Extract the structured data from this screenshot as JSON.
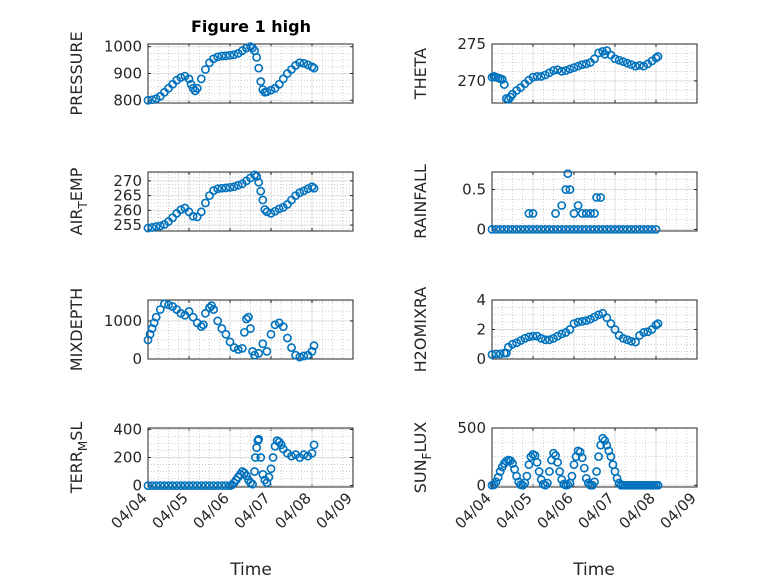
{
  "figure": {
    "title": "Figure 1 high",
    "marker_color": "#0072BD",
    "x_tick_labels": [
      "04/04",
      "04/05",
      "04/06",
      "04/07",
      "04/08",
      "04/09"
    ],
    "x_label": "Time"
  },
  "chart_data": [
    {
      "type": "scatter",
      "title": "Figure 1 high",
      "ylabel": "PRESSURE",
      "xlim": [
        0,
        5
      ],
      "ylim": [
        790,
        1010
      ],
      "yticks": [
        800,
        900,
        1000
      ],
      "xticks": [
        "04/04",
        "04/05",
        "04/06",
        "04/07",
        "04/08",
        "04/09"
      ],
      "grid": true,
      "series": [
        {
          "x": [
            0,
            0.1,
            0.2,
            0.3,
            0.4,
            0.5,
            0.6,
            0.7,
            0.8,
            0.9,
            1.0,
            1.05,
            1.1,
            1.15,
            1.2,
            1.3,
            1.4,
            1.5,
            1.6,
            1.7,
            1.8,
            1.9,
            2.0,
            2.1,
            2.2,
            2.3,
            2.4,
            2.5,
            2.55,
            2.6,
            2.65,
            2.7,
            2.75,
            2.8,
            2.85,
            2.9,
            3.0,
            3.1,
            3.2,
            3.3,
            3.4,
            3.5,
            3.6,
            3.7,
            3.8,
            3.9,
            4.0,
            4.05
          ],
          "y": [
            800,
            802,
            806,
            815,
            830,
            845,
            860,
            875,
            885,
            890,
            880,
            860,
            845,
            835,
            845,
            880,
            915,
            940,
            955,
            962,
            965,
            966,
            968,
            970,
            975,
            985,
            995,
            1000,
            995,
            985,
            960,
            920,
            870,
            840,
            830,
            832,
            838,
            845,
            860,
            880,
            900,
            915,
            930,
            940,
            938,
            932,
            925,
            920
          ]
        }
      ]
    },
    {
      "type": "scatter",
      "ylabel": "THETA",
      "xlim": [
        0,
        5
      ],
      "ylim": [
        267,
        275
      ],
      "yticks": [
        270,
        275
      ],
      "xticks": [
        "04/04",
        "04/05",
        "04/06",
        "04/07",
        "04/08",
        "04/09"
      ],
      "grid": true,
      "series": [
        {
          "x": [
            0,
            0.05,
            0.1,
            0.15,
            0.2,
            0.25,
            0.3,
            0.35,
            0.4,
            0.45,
            0.5,
            0.6,
            0.7,
            0.8,
            0.9,
            1.0,
            1.1,
            1.2,
            1.3,
            1.4,
            1.5,
            1.6,
            1.7,
            1.8,
            1.9,
            2.0,
            2.1,
            2.2,
            2.3,
            2.4,
            2.5,
            2.6,
            2.7,
            2.75,
            2.8,
            2.9,
            3.0,
            3.1,
            3.2,
            3.3,
            3.4,
            3.5,
            3.6,
            3.7,
            3.8,
            3.9,
            4.0,
            4.05
          ],
          "y": [
            270.5,
            270.6,
            270.5,
            270.4,
            270.3,
            270.2,
            269.5,
            267.6,
            267.5,
            267.8,
            268.2,
            268.7,
            269.1,
            269.6,
            270.1,
            270.5,
            270.6,
            270.6,
            270.8,
            271.1,
            271.4,
            271.5,
            271.3,
            271.4,
            271.6,
            271.8,
            272.0,
            272.2,
            272.3,
            272.5,
            273.0,
            273.8,
            274.0,
            273.6,
            274.1,
            273.5,
            273.0,
            272.8,
            272.6,
            272.4,
            272.2,
            272.0,
            272.1,
            272.0,
            272.3,
            272.7,
            273.1,
            273.3
          ]
        }
      ]
    },
    {
      "type": "scatter",
      "ylabel_main": "AIR",
      "ylabel_sub": "T",
      "ylabel_rest": "EMP",
      "xlim": [
        0,
        5
      ],
      "ylim": [
        253,
        273
      ],
      "yticks": [
        255,
        260,
        265,
        270
      ],
      "xticks": [
        "04/04",
        "04/05",
        "04/06",
        "04/07",
        "04/08",
        "04/09"
      ],
      "grid": true,
      "series": [
        {
          "x": [
            0,
            0.1,
            0.2,
            0.3,
            0.4,
            0.5,
            0.6,
            0.7,
            0.8,
            0.9,
            1.0,
            1.1,
            1.2,
            1.3,
            1.4,
            1.5,
            1.6,
            1.7,
            1.8,
            1.9,
            2.0,
            2.1,
            2.2,
            2.3,
            2.4,
            2.5,
            2.6,
            2.65,
            2.7,
            2.75,
            2.8,
            2.85,
            2.9,
            3.0,
            3.1,
            3.2,
            3.3,
            3.4,
            3.5,
            3.6,
            3.7,
            3.8,
            3.9,
            4.0,
            4.05
          ],
          "y": [
            254,
            254.2,
            254.5,
            254.7,
            255.2,
            256.2,
            257.5,
            259,
            260.2,
            260.8,
            259.5,
            258,
            257.8,
            259.5,
            262.5,
            265,
            266.7,
            267.3,
            267.5,
            267.6,
            267.8,
            268,
            268.5,
            269,
            270,
            271,
            272,
            271.5,
            269.5,
            266.5,
            263.5,
            260.3,
            259.5,
            259,
            259.7,
            260.5,
            261,
            262,
            263.5,
            265,
            266,
            266.6,
            267.3,
            268,
            267.5
          ]
        }
      ]
    },
    {
      "type": "scatter",
      "ylabel": "RAINFALL",
      "xlim": [
        0,
        5
      ],
      "ylim": [
        -0.02,
        0.72
      ],
      "yticks": [
        0,
        0.5
      ],
      "xticks": [
        "04/04",
        "04/05",
        "04/06",
        "04/07",
        "04/08",
        "04/09"
      ],
      "grid": true,
      "series": [
        {
          "x": [
            0,
            0.1,
            0.2,
            0.3,
            0.4,
            0.5,
            0.6,
            0.7,
            0.8,
            0.9,
            1.0,
            1.1,
            1.2,
            1.3,
            1.4,
            1.5,
            1.6,
            1.7,
            1.8,
            1.9,
            2.0,
            2.1,
            2.2,
            2.3,
            2.4,
            2.5,
            2.6,
            2.7,
            2.8,
            2.9,
            3.0,
            3.1,
            3.2,
            3.3,
            3.4,
            3.5,
            3.6,
            3.7,
            3.8,
            3.9,
            4.0,
            0.9,
            1.0,
            1.55,
            1.7,
            1.8,
            1.85,
            1.9,
            2.0,
            2.1,
            2.2,
            2.3,
            2.4,
            2.5,
            2.55,
            2.65
          ],
          "y": [
            0,
            0,
            0,
            0,
            0,
            0,
            0,
            0,
            0,
            0,
            0,
            0,
            0,
            0,
            0,
            0,
            0,
            0,
            0,
            0,
            0,
            0,
            0,
            0,
            0,
            0,
            0,
            0,
            0,
            0,
            0,
            0,
            0,
            0,
            0,
            0,
            0,
            0,
            0,
            0,
            0,
            0.2,
            0.2,
            0.2,
            0.3,
            0.5,
            0.7,
            0.5,
            0.2,
            0.3,
            0.2,
            0.2,
            0.2,
            0.2,
            0.4,
            0.4
          ]
        }
      ]
    },
    {
      "type": "scatter",
      "ylabel": "MIXDEPTH",
      "xlim": [
        0,
        5
      ],
      "ylim": [
        0,
        1550
      ],
      "yticks": [
        0,
        1000
      ],
      "xticks": [
        "04/04",
        "04/05",
        "04/06",
        "04/07",
        "04/08",
        "04/09"
      ],
      "grid": true,
      "series": [
        {
          "x": [
            0,
            0.05,
            0.1,
            0.15,
            0.2,
            0.3,
            0.4,
            0.5,
            0.6,
            0.7,
            0.8,
            0.9,
            1.0,
            1.1,
            1.2,
            1.3,
            1.35,
            1.4,
            1.5,
            1.55,
            1.6,
            1.7,
            1.8,
            1.9,
            2.0,
            2.1,
            2.2,
            2.3,
            2.35,
            2.4,
            2.45,
            2.5,
            2.55,
            2.6,
            2.7,
            2.8,
            2.9,
            3.0,
            3.1,
            3.2,
            3.3,
            3.4,
            3.5,
            3.6,
            3.7,
            3.8,
            3.9,
            4.0,
            4.05
          ],
          "y": [
            500,
            650,
            800,
            950,
            1100,
            1300,
            1450,
            1420,
            1380,
            1300,
            1200,
            1150,
            1250,
            1100,
            950,
            850,
            900,
            1200,
            1350,
            1400,
            1300,
            1000,
            800,
            650,
            450,
            300,
            250,
            280,
            700,
            1050,
            1100,
            800,
            200,
            100,
            150,
            400,
            200,
            650,
            900,
            950,
            850,
            550,
            300,
            100,
            50,
            80,
            100,
            200,
            350
          ]
        }
      ]
    },
    {
      "type": "scatter",
      "ylabel": "H2OMIXRA",
      "xlim": [
        0,
        5
      ],
      "ylim": [
        0,
        4
      ],
      "yticks": [
        0,
        2,
        4
      ],
      "xticks": [
        "04/04",
        "04/05",
        "04/06",
        "04/07",
        "04/08",
        "04/09"
      ],
      "grid": true,
      "series": [
        {
          "x": [
            0,
            0.1,
            0.2,
            0.3,
            0.35,
            0.4,
            0.5,
            0.6,
            0.7,
            0.8,
            0.9,
            1.0,
            1.1,
            1.2,
            1.3,
            1.4,
            1.5,
            1.6,
            1.7,
            1.8,
            1.9,
            2.0,
            2.1,
            2.2,
            2.3,
            2.4,
            2.5,
            2.6,
            2.7,
            2.8,
            2.9,
            3.0,
            3.1,
            3.2,
            3.3,
            3.4,
            3.5,
            3.6,
            3.7,
            3.8,
            3.9,
            4.0,
            4.05
          ],
          "y": [
            0.3,
            0.35,
            0.35,
            0.4,
            0.4,
            0.8,
            1.0,
            1.1,
            1.25,
            1.4,
            1.5,
            1.55,
            1.55,
            1.4,
            1.3,
            1.3,
            1.4,
            1.55,
            1.7,
            1.8,
            2.0,
            2.4,
            2.5,
            2.55,
            2.6,
            2.7,
            2.85,
            3.0,
            3.1,
            2.8,
            2.4,
            2.0,
            1.6,
            1.4,
            1.3,
            1.2,
            1.15,
            1.6,
            1.8,
            1.85,
            2.0,
            2.3,
            2.4
          ]
        }
      ]
    },
    {
      "type": "scatter",
      "ylabel_main": "TERR",
      "ylabel_sub": "M",
      "ylabel_rest": "SL",
      "xlim": [
        0,
        5
      ],
      "ylim": [
        -10,
        410
      ],
      "yticks": [
        0,
        200,
        400
      ],
      "xticks": [
        "04/04",
        "04/05",
        "04/06",
        "04/07",
        "04/08",
        "04/09"
      ],
      "grid": true,
      "series": [
        {
          "x": [
            0,
            0.1,
            0.2,
            0.3,
            0.4,
            0.5,
            0.6,
            0.7,
            0.8,
            0.9,
            1.0,
            1.1,
            1.2,
            1.3,
            1.4,
            1.5,
            1.6,
            1.7,
            1.8,
            1.9,
            2.0,
            2.05,
            2.1,
            2.15,
            2.2,
            2.25,
            2.3,
            2.35,
            2.4,
            2.45,
            2.5,
            2.55,
            2.6,
            2.62,
            2.65,
            2.68,
            2.7,
            2.75,
            2.8,
            2.85,
            2.9,
            2.95,
            3.0,
            3.05,
            3.1,
            3.15,
            3.2,
            3.25,
            3.3,
            3.4,
            3.5,
            3.6,
            3.7,
            3.8,
            3.9,
            4.0,
            4.05
          ],
          "y": [
            0,
            0,
            0,
            0,
            0,
            0,
            0,
            0,
            0,
            0,
            0,
            0,
            0,
            0,
            0,
            0,
            0,
            0,
            0,
            0,
            0,
            5,
            20,
            40,
            60,
            80,
            100,
            90,
            70,
            40,
            20,
            10,
            100,
            200,
            270,
            320,
            330,
            200,
            80,
            40,
            20,
            60,
            120,
            200,
            280,
            320,
            310,
            290,
            260,
            230,
            210,
            220,
            200,
            220,
            210,
            230,
            290
          ]
        }
      ]
    },
    {
      "type": "scatter",
      "ylabel_main": "SUN",
      "ylabel_sub": "F",
      "ylabel_rest": "LUX",
      "xlim": [
        0,
        5
      ],
      "ylim": [
        -15,
        500
      ],
      "yticks": [
        0,
        500
      ],
      "xticks": [
        "04/04",
        "04/05",
        "04/06",
        "04/07",
        "04/08",
        "04/09"
      ],
      "grid": true,
      "series": [
        {
          "x": [
            0,
            0.05,
            0.1,
            0.15,
            0.2,
            0.25,
            0.3,
            0.35,
            0.4,
            0.45,
            0.5,
            0.55,
            0.6,
            0.65,
            0.7,
            0.75,
            0.8,
            0.85,
            0.9,
            0.95,
            1.0,
            1.05,
            1.1,
            1.15,
            1.2,
            1.25,
            1.3,
            1.35,
            1.4,
            1.45,
            1.5,
            1.55,
            1.6,
            1.65,
            1.7,
            1.75,
            1.8,
            1.85,
            1.9,
            1.95,
            2.0,
            2.05,
            2.1,
            2.15,
            2.2,
            2.25,
            2.3,
            2.35,
            2.4,
            2.45,
            2.5,
            2.55,
            2.6,
            2.65,
            2.7,
            2.75,
            2.8,
            2.85,
            2.9,
            2.95,
            3.0,
            3.05,
            3.1,
            3.15,
            3.2,
            3.25,
            3.3,
            3.35,
            3.4,
            3.45,
            3.5,
            3.55,
            3.6,
            3.65,
            3.7,
            3.75,
            3.8,
            3.85,
            3.9,
            3.95,
            4.0,
            4.05
          ],
          "y": [
            0,
            5,
            30,
            70,
            120,
            160,
            190,
            210,
            220,
            215,
            190,
            140,
            80,
            30,
            5,
            0,
            20,
            80,
            180,
            250,
            270,
            260,
            200,
            120,
            50,
            10,
            0,
            20,
            120,
            220,
            280,
            260,
            200,
            120,
            50,
            10,
            0,
            5,
            20,
            80,
            180,
            250,
            300,
            290,
            240,
            150,
            60,
            20,
            0,
            0,
            30,
            120,
            250,
            350,
            410,
            390,
            350,
            300,
            250,
            180,
            120,
            60,
            20,
            0,
            0,
            0,
            0,
            0,
            0,
            0,
            0,
            0,
            0,
            0,
            0,
            0,
            0,
            0,
            0,
            0,
            0,
            0
          ]
        }
      ]
    }
  ]
}
